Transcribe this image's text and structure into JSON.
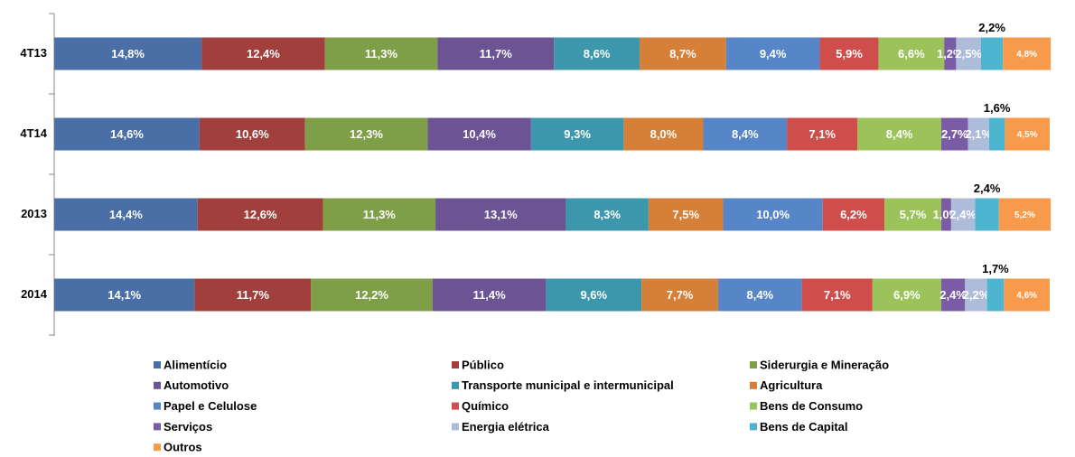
{
  "chart_data": {
    "type": "stacked-barh",
    "categories": [
      "4T13",
      "4T14",
      "2013",
      "2014"
    ],
    "xlim": [
      0,
      100
    ],
    "series": [
      {
        "name": "Alimentício",
        "color": "#4a6ea6",
        "values": [
          14.8,
          14.6,
          14.4,
          14.1
        ],
        "value_labels": [
          "14,8%",
          "14,6%",
          "14,4%",
          "14,1%"
        ]
      },
      {
        "name": "Público",
        "color": "#a13f3d",
        "values": [
          12.4,
          10.6,
          12.6,
          11.7
        ],
        "value_labels": [
          "12,4%",
          "10,6%",
          "12,6%",
          "11,7%"
        ]
      },
      {
        "name": "Siderurgia e Mineração",
        "color": "#7f9e48",
        "values": [
          11.3,
          12.3,
          11.3,
          12.2
        ],
        "value_labels": [
          "11,3%",
          "12,3%",
          "11,3%",
          "12,2%"
        ]
      },
      {
        "name": "Automotivo",
        "color": "#6b5394",
        "values": [
          11.7,
          10.4,
          13.1,
          11.4
        ],
        "value_labels": [
          "11,7%",
          "10,4%",
          "13,1%",
          "11,4%"
        ]
      },
      {
        "name": "Transporte municipal e intermunicipal",
        "color": "#3c97ac",
        "values": [
          8.6,
          9.3,
          8.3,
          9.6
        ],
        "value_labels": [
          "8,6%",
          "9,3%",
          "8,3%",
          "9,6%"
        ]
      },
      {
        "name": "Agricultura",
        "color": "#d67f38",
        "values": [
          8.7,
          8.0,
          7.5,
          7.7
        ],
        "value_labels": [
          "8,7%",
          "8,0%",
          "7,5%",
          "7,7%"
        ]
      },
      {
        "name": "Papel e Celulose",
        "color": "#5686c8",
        "values": [
          9.4,
          8.4,
          10.0,
          8.4
        ],
        "value_labels": [
          "9,4%",
          "8,4%",
          "10,0%",
          "8,4%"
        ]
      },
      {
        "name": "Químico",
        "color": "#cf4e4c",
        "values": [
          5.9,
          7.1,
          6.2,
          7.1
        ],
        "value_labels": [
          "5,9%",
          "7,1%",
          "6,2%",
          "7,1%"
        ]
      },
      {
        "name": "Bens de Consumo",
        "color": "#9cc35a",
        "values": [
          6.6,
          8.4,
          5.7,
          6.9
        ],
        "value_labels": [
          "6,6%",
          "8,4%",
          "5,7%",
          "6,9%"
        ]
      },
      {
        "name": "Serviços",
        "color": "#7a5ca6",
        "values": [
          1.2,
          2.7,
          1.0,
          2.4
        ],
        "value_labels": [
          "1,2%",
          "2,7%",
          "1,0%",
          "2,4%"
        ]
      },
      {
        "name": "Energia elétrica",
        "color": "#adbdd9",
        "values": [
          2.5,
          2.1,
          2.4,
          2.2
        ],
        "value_labels": [
          "2,5%",
          "2,1%",
          "2,4%",
          "2,2%"
        ]
      },
      {
        "name": "Bens de Capital",
        "color": "#4db5d0",
        "values": [
          2.2,
          1.6,
          2.4,
          1.7
        ],
        "value_labels": [
          "2,2%",
          "1,6%",
          "2,4%",
          "1,7%"
        ]
      },
      {
        "name": "Outros",
        "color": "#f79a4b",
        "values": [
          4.8,
          4.5,
          5.2,
          4.6
        ],
        "value_labels": [
          "4,8%",
          "4,5%",
          "5,2%",
          "4,6%"
        ]
      }
    ]
  }
}
